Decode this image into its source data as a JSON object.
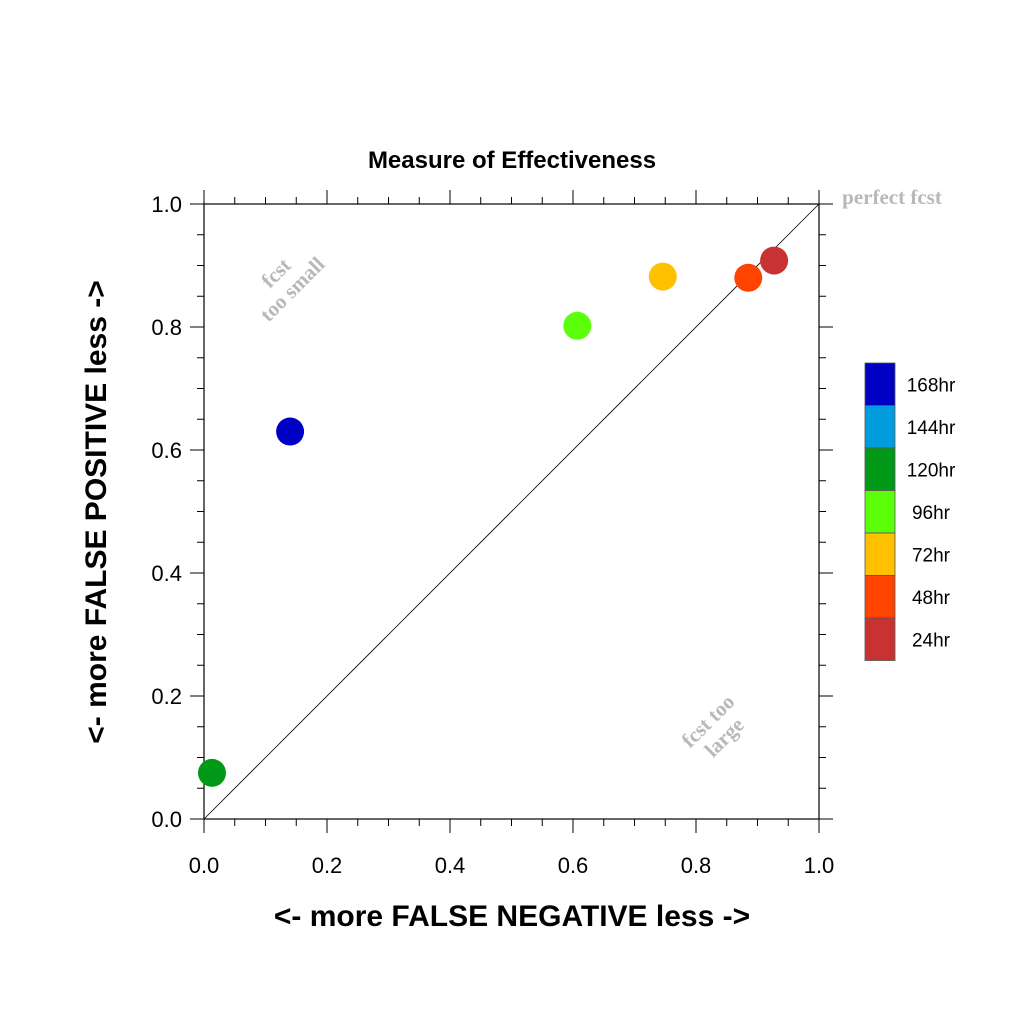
{
  "chart_data": {
    "type": "scatter",
    "title": "Measure of Effectiveness",
    "xlabel": "<- more   FALSE NEGATIVE   less ->",
    "ylabel": "<- more   FALSE POSITIVE   less ->",
    "xlim": [
      0,
      1
    ],
    "ylim": [
      0,
      1
    ],
    "xticks": [
      "0.0",
      "0.2",
      "0.4",
      "0.6",
      "0.8",
      "1.0"
    ],
    "yticks": [
      "0.0",
      "0.2",
      "0.4",
      "0.6",
      "0.8",
      "1.0"
    ],
    "grid": false,
    "diagonal_line": true,
    "legend_position": "right",
    "annotations": {
      "perfect": "perfect fcst",
      "small_line1": "fcst",
      "small_line2": "too small",
      "large_line1": "fcst too",
      "large_line2": "large"
    },
    "series": [
      {
        "name": "168hr",
        "color": "#0000c4",
        "x": 0.14,
        "y": 0.63
      },
      {
        "name": "144hr",
        "color": "#009cdc",
        "x": null,
        "y": null
      },
      {
        "name": "120hr",
        "color": "#009a18",
        "x": 0.013,
        "y": 0.075
      },
      {
        "name": "96hr",
        "color": "#5cff0a",
        "x": 0.607,
        "y": 0.802
      },
      {
        "name": "72hr",
        "color": "#ffc000",
        "x": 0.746,
        "y": 0.882
      },
      {
        "name": "48hr",
        "color": "#ff4400",
        "x": 0.885,
        "y": 0.88
      },
      {
        "name": "24hr",
        "color": "#c83232",
        "x": 0.927,
        "y": 0.908
      }
    ]
  }
}
